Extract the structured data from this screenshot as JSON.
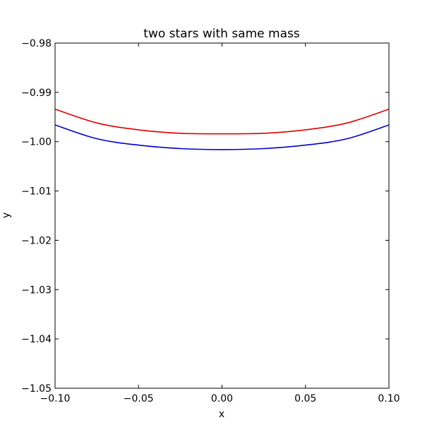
{
  "chart_data": {
    "type": "line",
    "title": "two stars with same mass",
    "xlabel": "x",
    "ylabel": "y",
    "xlim": [
      -0.1,
      0.1
    ],
    "ylim": [
      -1.05,
      -0.98
    ],
    "xticks": [
      -0.1,
      -0.05,
      0.0,
      0.05,
      0.1
    ],
    "xtick_labels": [
      "−0.10",
      "−0.05",
      "0.00",
      "0.05",
      "0.10"
    ],
    "yticks": [
      -0.98,
      -0.99,
      -1.0,
      -1.01,
      -1.02,
      -1.03,
      -1.04,
      -1.05
    ],
    "ytick_labels": [
      "−0.98",
      "−0.99",
      "−1.00",
      "−1.01",
      "−1.02",
      "−1.03",
      "−1.04",
      "−1.05"
    ],
    "grid": false,
    "legend": "none",
    "series": [
      {
        "color": "#e00000",
        "x": [
          -0.1,
          -0.075,
          -0.05,
          -0.025,
          0.0,
          0.025,
          0.05,
          0.075,
          0.1
        ],
        "y": [
          -0.9934,
          -0.9962,
          -0.9976,
          -0.9983,
          -0.9984,
          -0.9983,
          -0.9976,
          -0.9962,
          -0.9934
        ]
      },
      {
        "color": "#0000cc",
        "x": [
          -0.1,
          -0.075,
          -0.05,
          -0.025,
          0.0,
          0.025,
          0.05,
          0.075,
          0.1
        ],
        "y": [
          -0.9966,
          -0.9994,
          -1.0007,
          -1.0014,
          -1.0016,
          -1.0014,
          -1.0007,
          -0.9994,
          -0.9966
        ]
      }
    ]
  }
}
